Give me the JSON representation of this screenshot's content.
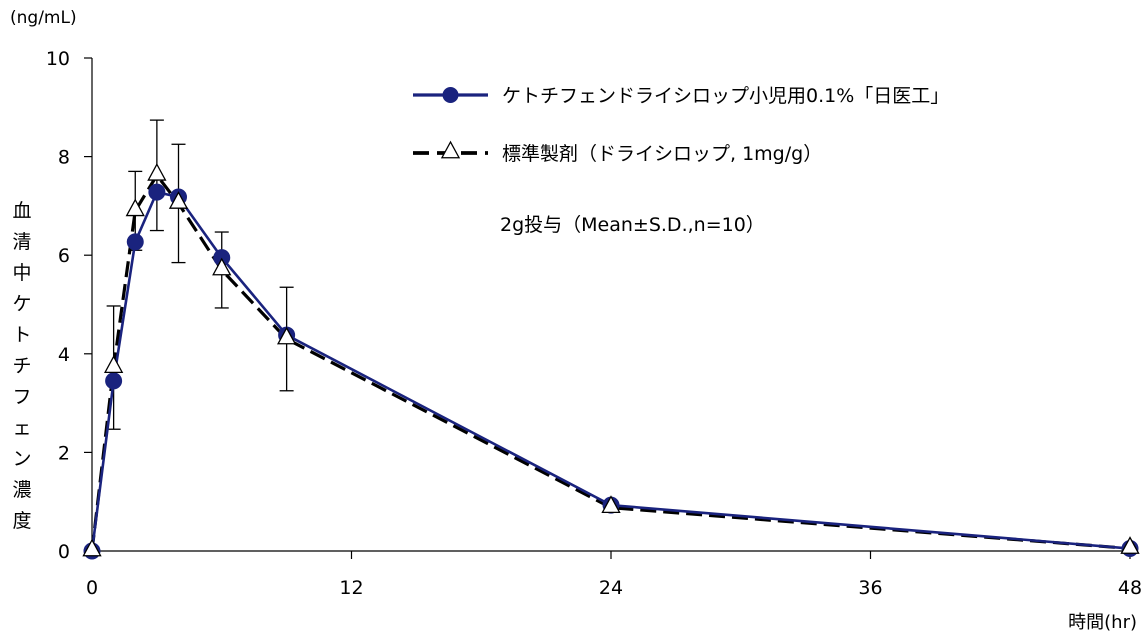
{
  "chart_data": {
    "type": "line",
    "y_unit": "(ng/mL)",
    "ylabel": "血清中ケトチフェン濃度",
    "xlabel": "時間(hr)",
    "note": "2g投与（Mean±S.D.,n=10）",
    "xlim": [
      0,
      48
    ],
    "ylim": [
      0,
      10
    ],
    "x_ticks": [
      0,
      12,
      24,
      36,
      48
    ],
    "y_ticks": [
      0,
      2,
      4,
      6,
      8,
      10
    ],
    "grid": false,
    "legend_position": "top-right",
    "series": [
      {
        "name": "ケトチフェンドライシロップ小児用0.1%「日医工」",
        "color": "#1a237e",
        "marker": "filled-circle",
        "line": "solid",
        "x": [
          0,
          1,
          2,
          3,
          4,
          6,
          9,
          24,
          48
        ],
        "y": [
          0,
          3.45,
          6.27,
          7.28,
          7.18,
          5.95,
          4.38,
          0.93,
          0.05
        ]
      },
      {
        "name": "標準製剤（ドライシロップ, 1mg/g）",
        "color": "#000000",
        "marker": "open-triangle",
        "line": "dashed",
        "x": [
          0,
          1,
          2,
          3,
          4,
          6,
          9,
          24,
          48
        ],
        "y": [
          0,
          3.72,
          6.9,
          7.62,
          7.05,
          5.7,
          4.3,
          0.88,
          0.05
        ],
        "sd": [
          0,
          1.25,
          0.8,
          1.12,
          1.2,
          0.77,
          1.05,
          0,
          0
        ]
      }
    ]
  }
}
